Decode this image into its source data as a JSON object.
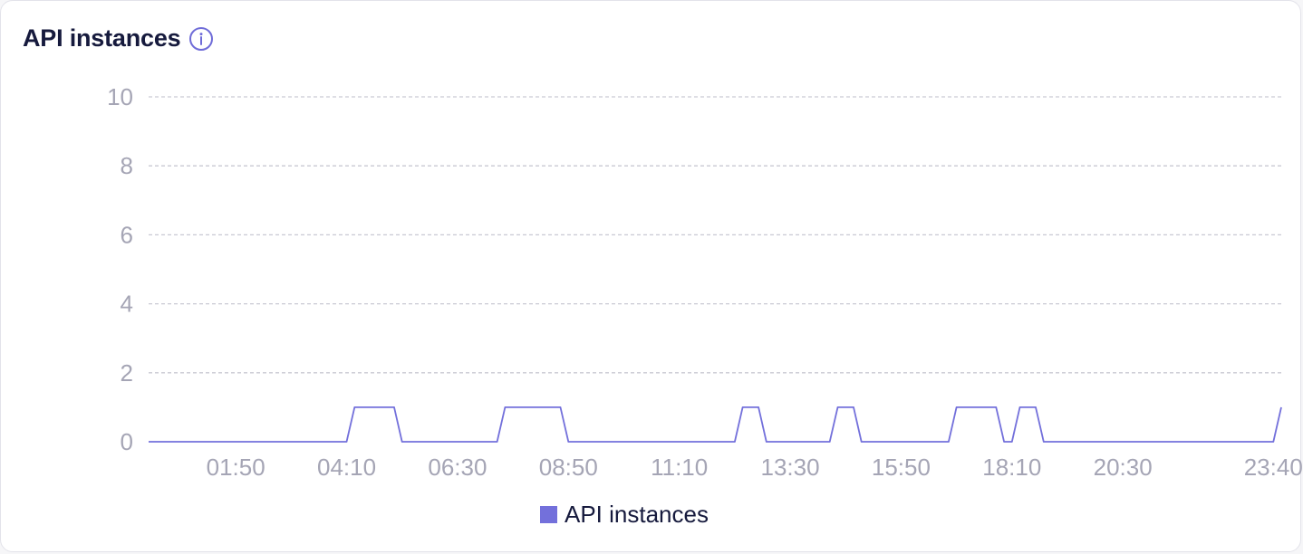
{
  "panel": {
    "title": "API instances",
    "info_icon": "info-circle-icon"
  },
  "colors": {
    "series": "#7370db",
    "grid": "#c9c9d3",
    "axis_text": "#a5a5b5",
    "title": "#161a3d"
  },
  "legend": {
    "label": "API instances"
  },
  "chart_data": {
    "type": "line",
    "title": "API instances",
    "xlabel": "",
    "ylabel": "",
    "ylim": [
      0,
      10
    ],
    "yticks": [
      0,
      2,
      4,
      6,
      8,
      10
    ],
    "xlim": [
      "00:00",
      "23:50"
    ],
    "xticks": [
      "01:50",
      "04:10",
      "06:30",
      "08:50",
      "11:10",
      "13:30",
      "15:50",
      "18:10",
      "20:30",
      "23:40"
    ],
    "grid": true,
    "legend_position": "bottom-center",
    "series": [
      {
        "name": "API instances",
        "color": "#7370db",
        "x": [
          "00:00",
          "04:10",
          "04:20",
          "05:10",
          "05:20",
          "07:20",
          "07:30",
          "08:40",
          "08:50",
          "12:20",
          "12:30",
          "12:50",
          "13:00",
          "14:20",
          "14:30",
          "14:50",
          "15:00",
          "16:50",
          "17:00",
          "17:50",
          "18:00",
          "18:10",
          "18:20",
          "18:40",
          "18:50",
          "23:40",
          "23:50"
        ],
        "values": [
          0,
          0,
          1,
          1,
          0,
          0,
          1,
          1,
          0,
          0,
          1,
          1,
          0,
          0,
          1,
          1,
          0,
          0,
          1,
          1,
          0,
          0,
          1,
          1,
          0,
          0,
          1
        ]
      }
    ]
  }
}
